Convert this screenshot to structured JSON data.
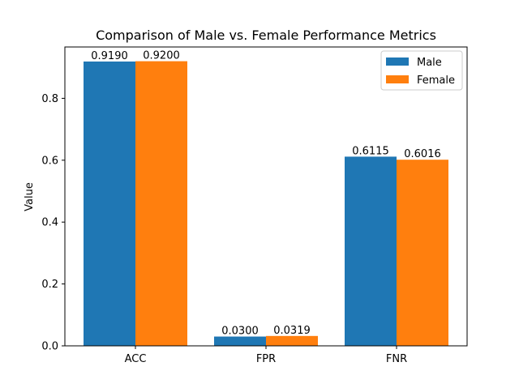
{
  "chart_data": {
    "type": "bar",
    "title": "Comparison of Male vs. Female Performance Metrics",
    "xlabel": "",
    "ylabel": "Value",
    "categories": [
      "ACC",
      "FPR",
      "FNR"
    ],
    "series": [
      {
        "name": "Male",
        "values": [
          0.919,
          0.03,
          0.6115
        ],
        "labels": [
          "0.9190",
          "0.0300",
          "0.6115"
        ],
        "color": "#1f77b4"
      },
      {
        "name": "Female",
        "values": [
          0.92,
          0.0319,
          0.6016
        ],
        "labels": [
          "0.9200",
          "0.0319",
          "0.6016"
        ],
        "color": "#ff7f0e"
      }
    ],
    "ylim": [
      0,
      0.966
    ],
    "yticks": [
      0.0,
      0.2,
      0.4,
      0.6,
      0.8
    ],
    "ytick_labels": [
      "0.0",
      "0.2",
      "0.4",
      "0.6",
      "0.8"
    ],
    "grid": false,
    "legend_position": "top-right"
  }
}
